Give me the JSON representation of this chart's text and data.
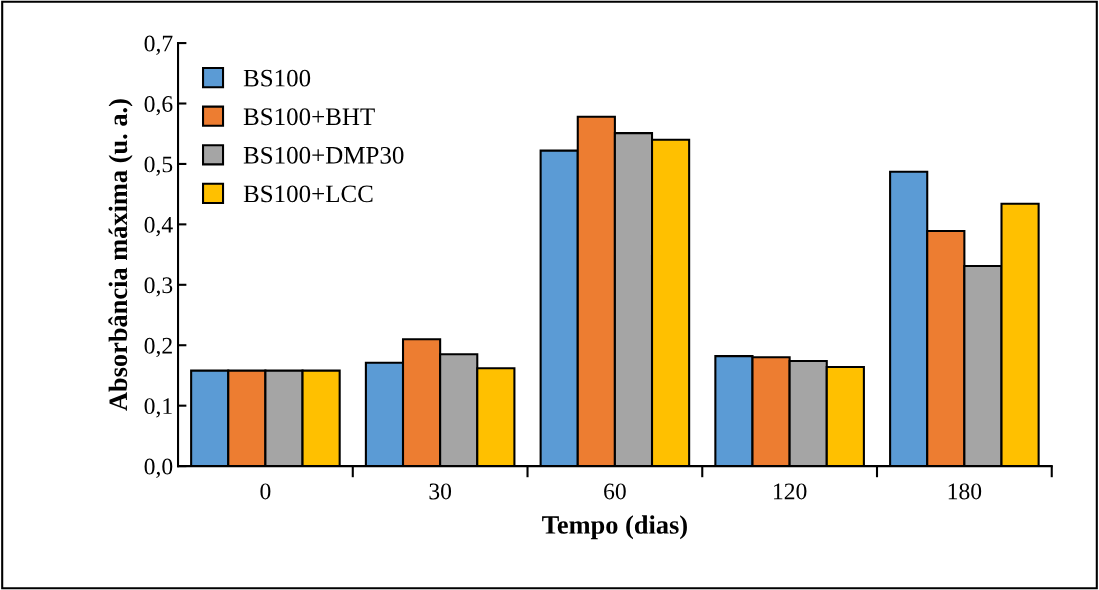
{
  "chart_data": {
    "type": "bar",
    "xlabel": "Tempo (dias)",
    "ylabel": "Absorbância máxima (u. a.)",
    "categories": [
      "0",
      "30",
      "60",
      "120",
      "180"
    ],
    "series": [
      {
        "name": "BS100",
        "color": "#5b9bd5",
        "values": [
          0.158,
          0.171,
          0.522,
          0.182,
          0.487
        ]
      },
      {
        "name": "BS100+BHT",
        "color": "#ed7d31",
        "values": [
          0.158,
          0.21,
          0.578,
          0.18,
          0.389
        ]
      },
      {
        "name": "BS100+DMP30",
        "color": "#a5a5a5",
        "values": [
          0.158,
          0.185,
          0.551,
          0.174,
          0.331
        ]
      },
      {
        "name": "BS100+LCC",
        "color": "#ffc000",
        "values": [
          0.158,
          0.162,
          0.54,
          0.164,
          0.434
        ]
      }
    ],
    "ylim": [
      0,
      0.7
    ],
    "yticks": [
      {
        "value": 0,
        "label": "0,0"
      },
      {
        "value": 0.1,
        "label": "0,1"
      },
      {
        "value": 0.2,
        "label": "0,2"
      },
      {
        "value": 0.3,
        "label": "0,3"
      },
      {
        "value": 0.4,
        "label": "0,4"
      },
      {
        "value": 0.5,
        "label": "0,5"
      },
      {
        "value": 0.6,
        "label": "0,6"
      },
      {
        "value": 0.7,
        "label": "0,7"
      }
    ],
    "grid": false,
    "legend": "top left"
  }
}
